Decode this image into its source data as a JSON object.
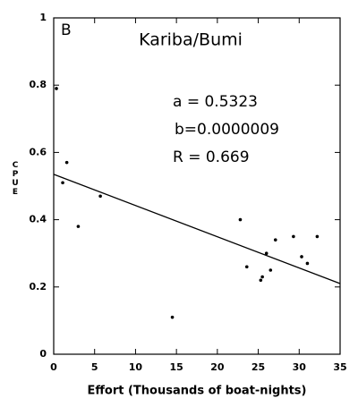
{
  "chart_data": {
    "type": "scatter",
    "panel_label": "B",
    "title": "Kariba/Bumi",
    "annotations": [
      "a = 0.5323",
      "b=0.0000009",
      "R = 0.669"
    ],
    "xlabel": "Effort (Thousands of boat-nights)",
    "ylabel": "CPUE",
    "x": [
      0.33,
      1.1,
      1.6,
      3.0,
      5.7,
      14.5,
      22.8,
      23.6,
      25.3,
      25.5,
      26.0,
      26.5,
      27.1,
      29.3,
      30.3,
      31.0,
      32.2
    ],
    "values": [
      0.79,
      0.51,
      0.57,
      0.38,
      0.47,
      0.11,
      0.4,
      0.26,
      0.22,
      0.23,
      0.3,
      0.25,
      0.34,
      0.35,
      0.29,
      0.27,
      0.35
    ],
    "color": "#000000",
    "fit_line": {
      "x": [
        0,
        35
      ],
      "y": [
        0.535,
        0.21
      ]
    },
    "xlim": [
      0,
      35
    ],
    "ylim": [
      0,
      1
    ],
    "xticks": [
      0,
      5,
      10,
      15,
      20,
      25,
      30,
      35
    ],
    "yticks": [
      0,
      0.2,
      0.4,
      0.6,
      0.8,
      1
    ]
  }
}
